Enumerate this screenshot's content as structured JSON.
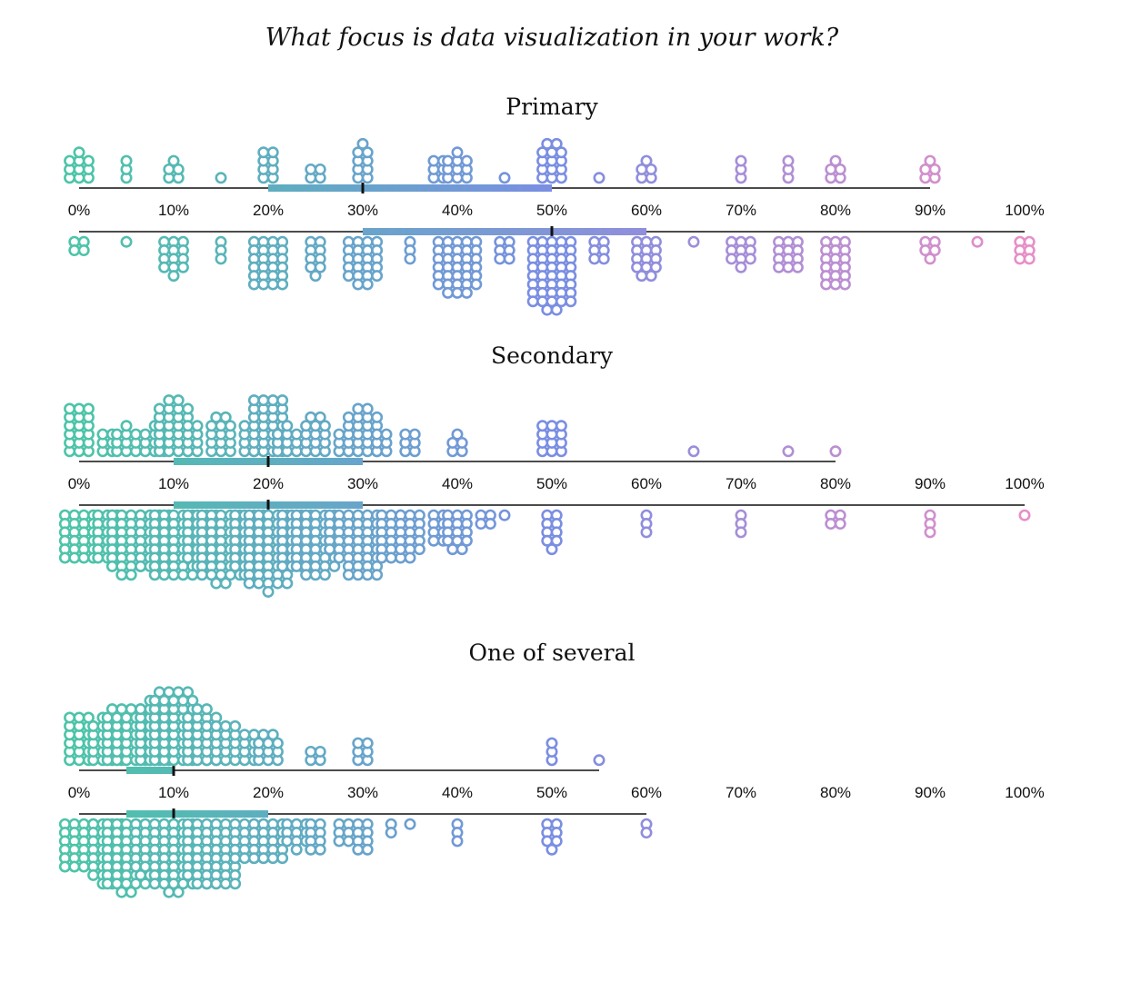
{
  "chart_data": {
    "type": "beeswarm",
    "title": "What focus is data visualization in your work?",
    "x_ticks": [
      "0%",
      "10%",
      "20%",
      "30%",
      "40%",
      "50%",
      "60%",
      "70%",
      "80%",
      "90%",
      "100%"
    ],
    "xlim": [
      0,
      100
    ],
    "color_scale": {
      "low": "#4cc4a8",
      "mid": "#7a8ee2",
      "high": "#e78fc8"
    },
    "panels": [
      {
        "name": "Primary",
        "groups": [
          {
            "position": "upper",
            "range": [
              0,
              90
            ],
            "iqr": [
              20,
              50
            ],
            "median": 30,
            "points": [
              [
                0,
                10
              ],
              [
                5,
                3
              ],
              [
                10,
                5
              ],
              [
                15,
                1
              ],
              [
                20,
                8
              ],
              [
                25,
                4
              ],
              [
                30,
                9
              ],
              [
                38,
                6
              ],
              [
                40,
                10
              ],
              [
                45,
                1
              ],
              [
                50,
                14
              ],
              [
                55,
                1
              ],
              [
                60,
                5
              ],
              [
                70,
                3
              ],
              [
                75,
                3
              ],
              [
                80,
                5
              ],
              [
                90,
                5
              ]
            ]
          },
          {
            "position": "lower",
            "range": [
              0,
              100
            ],
            "iqr": [
              30,
              60
            ],
            "median": 50,
            "points": [
              [
                0,
                4
              ],
              [
                5,
                1
              ],
              [
                10,
                13
              ],
              [
                15,
                3
              ],
              [
                20,
                24
              ],
              [
                25,
                9
              ],
              [
                30,
                22
              ],
              [
                35,
                3
              ],
              [
                40,
                33
              ],
              [
                45,
                6
              ],
              [
                50,
                42
              ],
              [
                55,
                6
              ],
              [
                60,
                14
              ],
              [
                65,
                1
              ],
              [
                70,
                10
              ],
              [
                75,
                12
              ],
              [
                80,
                18
              ],
              [
                90,
                5
              ],
              [
                95,
                1
              ],
              [
                100,
                6
              ]
            ]
          }
        ]
      },
      {
        "name": "Secondary",
        "groups": [
          {
            "position": "upper",
            "range": [
              0,
              80
            ],
            "iqr": [
              10,
              30
            ],
            "median": 20,
            "points": [
              [
                0,
                18
              ],
              [
                3,
                6
              ],
              [
                5,
                10
              ],
              [
                8,
                10
              ],
              [
                10,
                26
              ],
              [
                12,
                8
              ],
              [
                15,
                14
              ],
              [
                18,
                8
              ],
              [
                20,
                28
              ],
              [
                22,
                10
              ],
              [
                25,
                14
              ],
              [
                28,
                6
              ],
              [
                30,
                22
              ],
              [
                32,
                6
              ],
              [
                35,
                6
              ],
              [
                40,
                5
              ],
              [
                50,
                12
              ],
              [
                65,
                1
              ],
              [
                75,
                1
              ],
              [
                80,
                1
              ]
            ]
          },
          {
            "position": "lower",
            "range": [
              0,
              100
            ],
            "iqr": [
              10,
              30
            ],
            "median": 20,
            "points": [
              [
                0,
                24
              ],
              [
                3,
                18
              ],
              [
                5,
                30
              ],
              [
                8,
                28
              ],
              [
                10,
                40
              ],
              [
                13,
                26
              ],
              [
                15,
                42
              ],
              [
                18,
                30
              ],
              [
                20,
                46
              ],
              [
                23,
                28
              ],
              [
                25,
                38
              ],
              [
                28,
                22
              ],
              [
                30,
                32
              ],
              [
                33,
                18
              ],
              [
                35,
                16
              ],
              [
                38,
                8
              ],
              [
                40,
                14
              ],
              [
                43,
                4
              ],
              [
                45,
                1
              ],
              [
                50,
                9
              ],
              [
                60,
                3
              ],
              [
                70,
                3
              ],
              [
                80,
                4
              ],
              [
                90,
                3
              ],
              [
                100,
                1
              ]
            ]
          }
        ]
      },
      {
        "name": "One of several",
        "groups": [
          {
            "position": "upper",
            "range": [
              0,
              55
            ],
            "iqr": [
              5,
              10
            ],
            "median": 10,
            "points": [
              [
                0,
                18
              ],
              [
                3,
                22
              ],
              [
                5,
                34
              ],
              [
                8,
                30
              ],
              [
                10,
                44
              ],
              [
                13,
                26
              ],
              [
                15,
                20
              ],
              [
                18,
                8
              ],
              [
                20,
                11
              ],
              [
                25,
                4
              ],
              [
                30,
                6
              ],
              [
                50,
                3
              ],
              [
                55,
                1
              ]
            ]
          },
          {
            "position": "lower",
            "range": [
              0,
              60
            ],
            "iqr": [
              5,
              20
            ],
            "median": 10,
            "points": [
              [
                0,
                24
              ],
              [
                3,
                30
              ],
              [
                5,
                42
              ],
              [
                8,
                34
              ],
              [
                10,
                42
              ],
              [
                13,
                30
              ],
              [
                15,
                32
              ],
              [
                18,
                20
              ],
              [
                20,
                20
              ],
              [
                23,
                10
              ],
              [
                25,
                8
              ],
              [
                28,
                6
              ],
              [
                30,
                8
              ],
              [
                33,
                2
              ],
              [
                35,
                1
              ],
              [
                40,
                3
              ],
              [
                50,
                7
              ],
              [
                60,
                2
              ]
            ]
          }
        ]
      }
    ]
  }
}
